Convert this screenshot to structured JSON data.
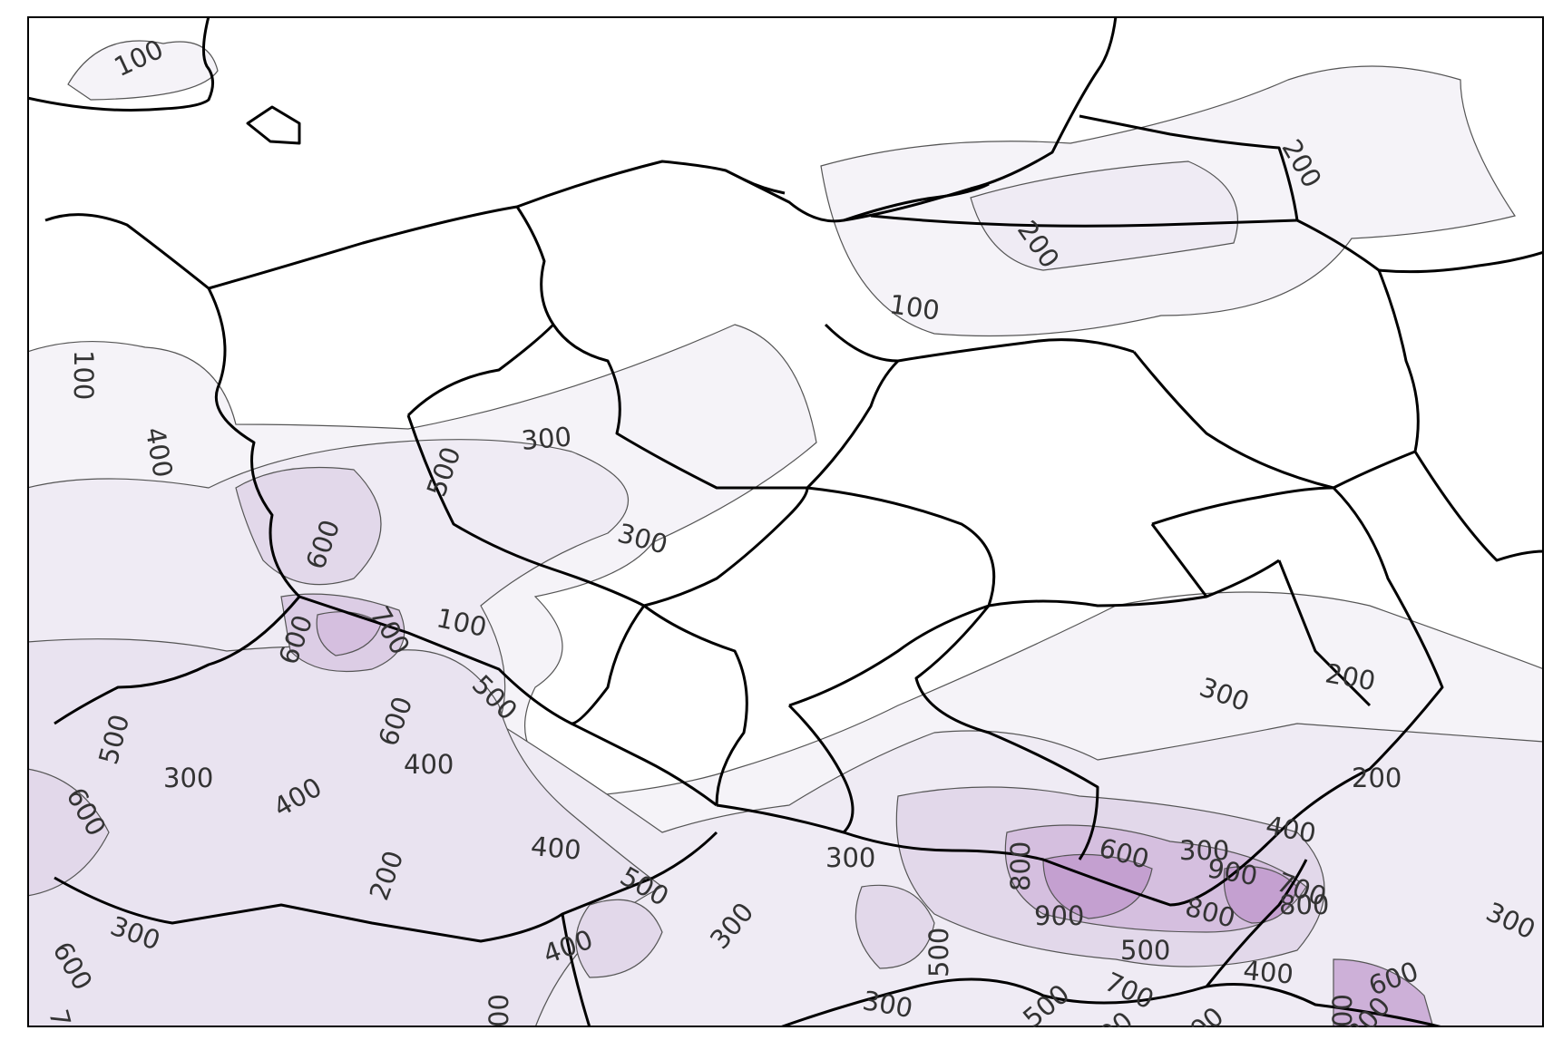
{
  "map": {
    "colors": {
      "land_fill": "#ffffff",
      "frame": "#000000",
      "border": "#000000",
      "contour_line": "#555555",
      "contour_label": "#333333",
      "fill_100": "#f5f3f8",
      "fill_200": "#efebf4",
      "fill_300": "#e9e3f0",
      "fill_400": "#e2d8ea",
      "fill_500": "#dccde5",
      "fill_600": "#d5bfdf",
      "fill_700": "#cdb0d8",
      "fill_800": "#c4a0d0",
      "fill_900": "#ba8fc6"
    },
    "contour_labels": [
      "100",
      "100",
      "100",
      "200",
      "200",
      "400",
      "300",
      "500",
      "600",
      "300",
      "100",
      "600",
      "700",
      "600",
      "600",
      "500",
      "400",
      "500",
      "300",
      "400",
      "600",
      "700",
      "200",
      "300",
      "400",
      "500",
      "300",
      "300",
      "500",
      "400",
      "800",
      "900",
      "600",
      "300",
      "900",
      "500",
      "700",
      "800",
      "800",
      "400",
      "400",
      "300",
      "200",
      "200",
      "300",
      "500",
      "700",
      "600",
      "200",
      "600",
      "800",
      "300",
      "00",
      "00"
    ]
  }
}
